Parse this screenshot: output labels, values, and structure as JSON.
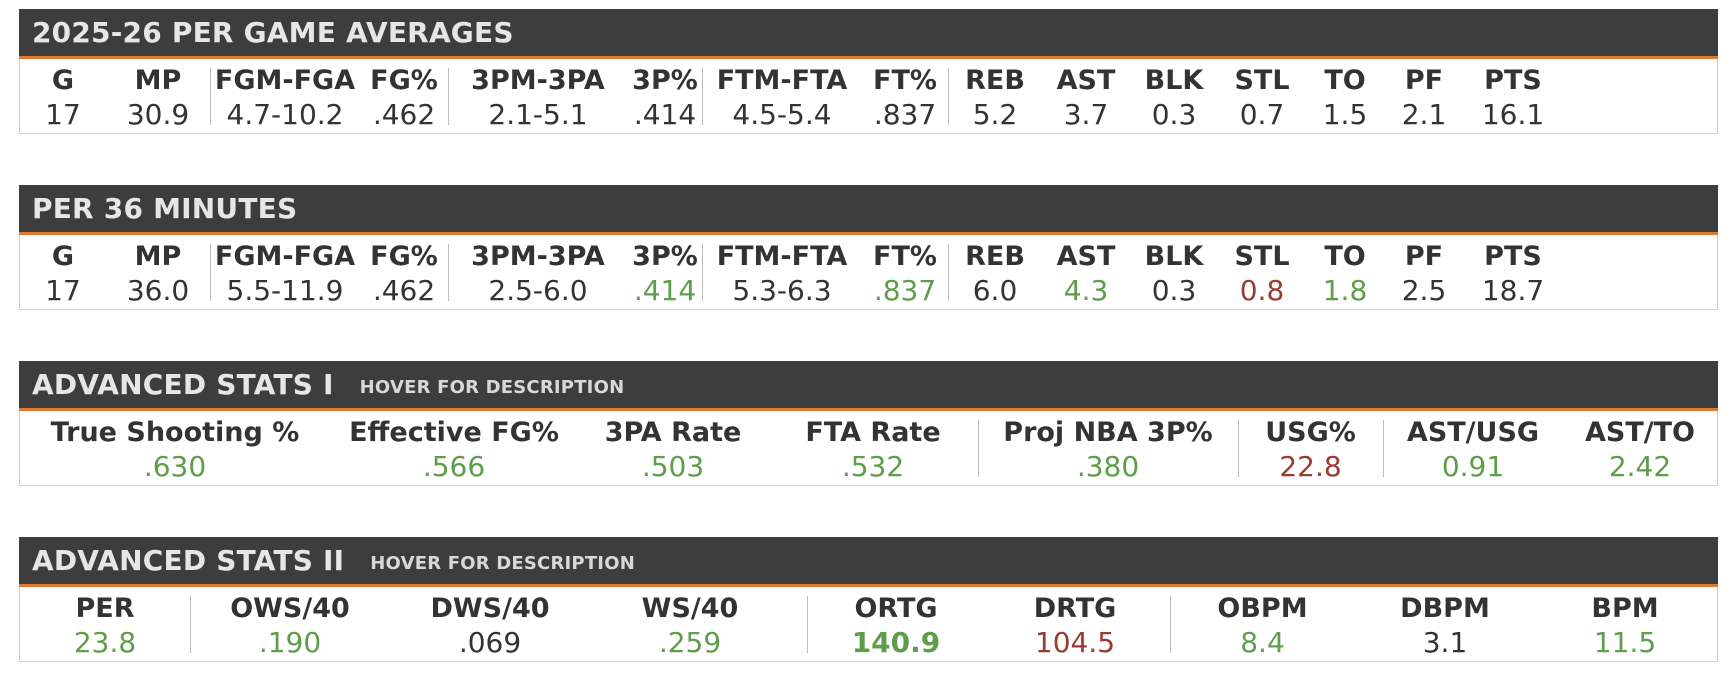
{
  "per_game": {
    "title": "2025-26 PER GAME AVERAGES",
    "stats": [
      {
        "label": "G",
        "value": "17",
        "color": "dark"
      },
      {
        "label": "MP",
        "value": "30.9",
        "color": "dark"
      },
      {
        "label": "FGM-FGA",
        "value": "4.7-10.2",
        "color": "dark"
      },
      {
        "label": "FG%",
        "value": ".462",
        "color": "dark"
      },
      {
        "label": "3PM-3PA",
        "value": "2.1-5.1",
        "color": "dark"
      },
      {
        "label": "3P%",
        "value": ".414",
        "color": "dark"
      },
      {
        "label": "FTM-FTA",
        "value": "4.5-5.4",
        "color": "dark"
      },
      {
        "label": "FT%",
        "value": ".837",
        "color": "dark"
      },
      {
        "label": "REB",
        "value": "5.2",
        "color": "dark"
      },
      {
        "label": "AST",
        "value": "3.7",
        "color": "dark"
      },
      {
        "label": "BLK",
        "value": "0.3",
        "color": "dark"
      },
      {
        "label": "STL",
        "value": "0.7",
        "color": "dark"
      },
      {
        "label": "TO",
        "value": "1.5",
        "color": "dark"
      },
      {
        "label": "PF",
        "value": "2.1",
        "color": "dark"
      },
      {
        "label": "PTS",
        "value": "16.1",
        "color": "dark"
      }
    ]
  },
  "per_36": {
    "title": "PER 36 MINUTES",
    "stats": [
      {
        "label": "G",
        "value": "17",
        "color": "dark"
      },
      {
        "label": "MP",
        "value": "36.0",
        "color": "dark"
      },
      {
        "label": "FGM-FGA",
        "value": "5.5-11.9",
        "color": "dark"
      },
      {
        "label": "FG%",
        "value": ".462",
        "color": "dark"
      },
      {
        "label": "3PM-3PA",
        "value": "2.5-6.0",
        "color": "dark"
      },
      {
        "label": "3P%",
        "value": ".414",
        "color": "green"
      },
      {
        "label": "FTM-FTA",
        "value": "5.3-6.3",
        "color": "dark"
      },
      {
        "label": "FT%",
        "value": ".837",
        "color": "green"
      },
      {
        "label": "REB",
        "value": "6.0",
        "color": "dark"
      },
      {
        "label": "AST",
        "value": "4.3",
        "color": "green"
      },
      {
        "label": "BLK",
        "value": "0.3",
        "color": "dark"
      },
      {
        "label": "STL",
        "value": "0.8",
        "color": "red"
      },
      {
        "label": "TO",
        "value": "1.8",
        "color": "green"
      },
      {
        "label": "PF",
        "value": "2.5",
        "color": "dark"
      },
      {
        "label": "PTS",
        "value": "18.7",
        "color": "dark"
      }
    ]
  },
  "advanced_1": {
    "title": "ADVANCED STATS I",
    "subtitle": "HOVER FOR DESCRIPTION",
    "stats": [
      {
        "label": "True Shooting %",
        "value": ".630",
        "color": "green"
      },
      {
        "label": "Effective FG%",
        "value": ".566",
        "color": "green"
      },
      {
        "label": "3PA Rate",
        "value": ".503",
        "color": "green"
      },
      {
        "label": "FTA Rate",
        "value": ".532",
        "color": "green"
      },
      {
        "label": "Proj NBA 3P%",
        "value": ".380",
        "color": "green"
      },
      {
        "label": "USG%",
        "value": "22.8",
        "color": "red"
      },
      {
        "label": "AST/USG",
        "value": "0.91",
        "color": "green"
      },
      {
        "label": "AST/TO",
        "value": "2.42",
        "color": "green"
      }
    ]
  },
  "advanced_2": {
    "title": "ADVANCED STATS II",
    "subtitle": "HOVER FOR DESCRIPTION",
    "stats": [
      {
        "label": "PER",
        "value": "23.8",
        "color": "green"
      },
      {
        "label": "OWS/40",
        "value": ".190",
        "color": "green"
      },
      {
        "label": "DWS/40",
        "value": ".069",
        "color": "dark"
      },
      {
        "label": "WS/40",
        "value": ".259",
        "color": "green"
      },
      {
        "label": "ORTG",
        "value": "140.9",
        "color": "green",
        "bold": true
      },
      {
        "label": "DRTG",
        "value": "104.5",
        "color": "red"
      },
      {
        "label": "OBPM",
        "value": "8.4",
        "color": "green"
      },
      {
        "label": "DBPM",
        "value": "3.1",
        "color": "dark"
      },
      {
        "label": "BPM",
        "value": "11.5",
        "color": "green"
      }
    ]
  },
  "colors": {
    "header_bg": "#3d3d3d",
    "header_accent": "#e07a2e",
    "positive": "#5f9d4b",
    "negative": "#9a3b31",
    "neutral": "#333333"
  }
}
